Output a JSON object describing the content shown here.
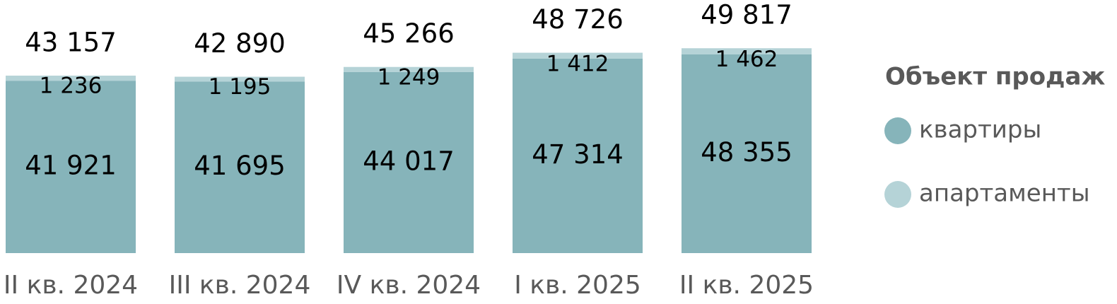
{
  "chart_data": {
    "type": "stacked-bar",
    "categories": [
      "II кв. 2024",
      "III кв. 2024",
      "IV кв. 2024",
      "I кв. 2025",
      "II кв. 2025"
    ],
    "series": [
      {
        "name": "квартиры",
        "color": "#86b4ba",
        "values": [
          41921,
          41695,
          44017,
          47314,
          48355
        ],
        "value_labels": [
          "41 921",
          "41 695",
          "44 017",
          "47 314",
          "48 355"
        ]
      },
      {
        "name": "апартаменты",
        "color": "#b5d3d7",
        "values": [
          1236,
          1195,
          1249,
          1412,
          1462
        ],
        "value_labels": [
          "1 236",
          "1 195",
          "1 249",
          "1 412",
          "1 462"
        ]
      }
    ],
    "totals": [
      43157,
      42890,
      45266,
      48726,
      49817
    ],
    "total_labels": [
      "43 157",
      "42 890",
      "45 266",
      "48 726",
      "49 817"
    ],
    "legend_title": "Объект продаж",
    "legend": "right",
    "ylim": [
      0,
      60000
    ]
  }
}
